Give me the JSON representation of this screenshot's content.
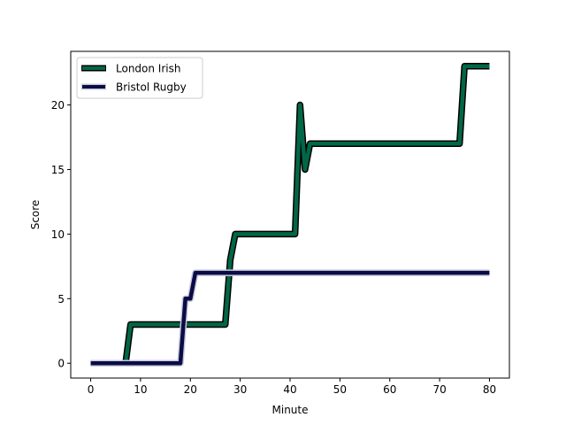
{
  "chart_data": {
    "type": "line",
    "xlabel": "Minute",
    "ylabel": "Score",
    "xlim": [
      -4,
      84
    ],
    "ylim": [
      -1.15,
      24.15
    ],
    "xticks": [
      0,
      10,
      20,
      30,
      40,
      50,
      60,
      70,
      80
    ],
    "yticks": [
      0,
      5,
      10,
      15,
      20
    ],
    "grid": false,
    "legend": "upper-left",
    "series": [
      {
        "name": "London Irish",
        "color": "#006747",
        "outline": "#000000",
        "x": [
          0,
          7,
          8,
          27,
          28,
          29,
          41,
          42,
          43,
          44,
          74,
          75,
          80
        ],
        "y": [
          0,
          0,
          3,
          3,
          8,
          10,
          10,
          20,
          15,
          17,
          17,
          23,
          23
        ]
      },
      {
        "name": "Bristol Rugby",
        "color": "#0b0b45",
        "outline": "#c8c8dc",
        "x": [
          0,
          18,
          19,
          20,
          21,
          80
        ],
        "y": [
          0,
          0,
          5,
          5,
          7,
          7
        ]
      }
    ]
  }
}
